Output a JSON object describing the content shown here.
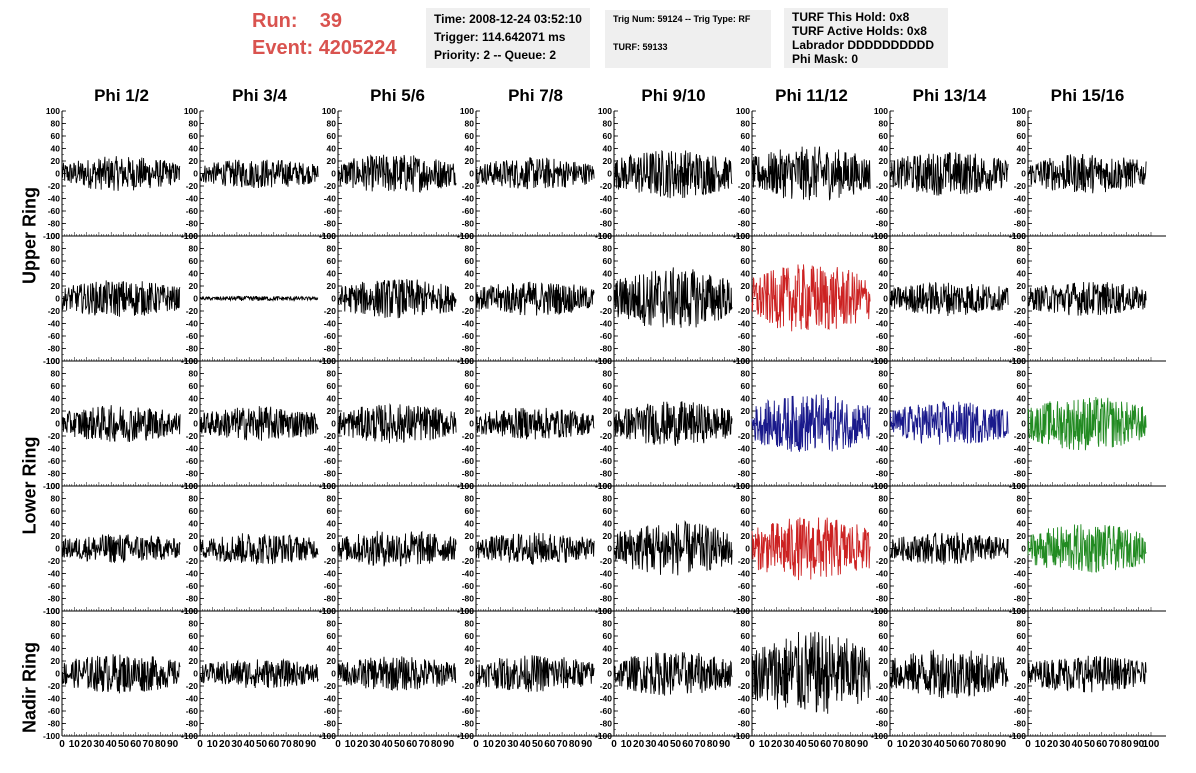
{
  "header": {
    "run_label": "Run:",
    "run_value": "39",
    "event_label": "Event:",
    "event_value": "4205224"
  },
  "info_boxes": {
    "time": "Time: 2008-12-24 03:52:10",
    "trigger": "Trigger: 114.642071 ms",
    "priority": "Priority: 2 -- Queue: 2",
    "trig_num": "Trig Num: 59124 -- Trig Type: RF",
    "turf": "TURF: 59133",
    "turf_hold": "TURF This Hold: 0x8",
    "turf_active": "TURF Active Holds: 0x8",
    "labrador": "Labrador DDDDDDDDDD",
    "phi_mask": "Phi Mask: 0"
  },
  "colors": {
    "default": "#000000",
    "red": "#cc2222",
    "blue": "#1a1a8c",
    "green": "#228b22"
  },
  "chart_data": {
    "type": "line",
    "columns": [
      "Phi 1/2",
      "Phi 3/4",
      "Phi 5/6",
      "Phi 7/8",
      "Phi 9/10",
      "Phi 11/12",
      "Phi 13/14",
      "Phi 15/16"
    ],
    "ring_labels": [
      {
        "name": "Upper Ring",
        "rows": [
          0,
          1
        ]
      },
      {
        "name": "Lower Ring",
        "rows": [
          2,
          3
        ]
      },
      {
        "name": "Nadir Ring",
        "rows": [
          4,
          4
        ]
      }
    ],
    "xlim": [
      0,
      100
    ],
    "ylim": [
      -100,
      100
    ],
    "x_ticks": [
      0,
      10,
      20,
      30,
      40,
      50,
      60,
      70,
      80,
      90
    ],
    "x_ticks_last": [
      0,
      10,
      20,
      30,
      40,
      50,
      60,
      70,
      80,
      90,
      100
    ],
    "y_ticks": [
      -100,
      -80,
      -60,
      -40,
      -20,
      0,
      20,
      40,
      60,
      80,
      100
    ],
    "amplitudes": [
      [
        14,
        12,
        16,
        13,
        20,
        22,
        18,
        16
      ],
      [
        15,
        2,
        16,
        14,
        25,
        28,
        14,
        14
      ],
      [
        15,
        14,
        16,
        13,
        18,
        24,
        18,
        22
      ],
      [
        12,
        13,
        15,
        13,
        22,
        26,
        13,
        20
      ],
      [
        16,
        12,
        14,
        15,
        18,
        34,
        20,
        15
      ]
    ],
    "trace_colors": [
      [
        "default",
        "default",
        "default",
        "default",
        "default",
        "default",
        "default",
        "default"
      ],
      [
        "default",
        "default",
        "default",
        "default",
        "default",
        "red",
        "default",
        "default"
      ],
      [
        "default",
        "default",
        "default",
        "default",
        "default",
        "blue",
        "blue",
        "green"
      ],
      [
        "default",
        "default",
        "default",
        "default",
        "default",
        "red",
        "default",
        "green"
      ],
      [
        "default",
        "default",
        "default",
        "default",
        "default",
        "default",
        "default",
        "default"
      ]
    ]
  }
}
